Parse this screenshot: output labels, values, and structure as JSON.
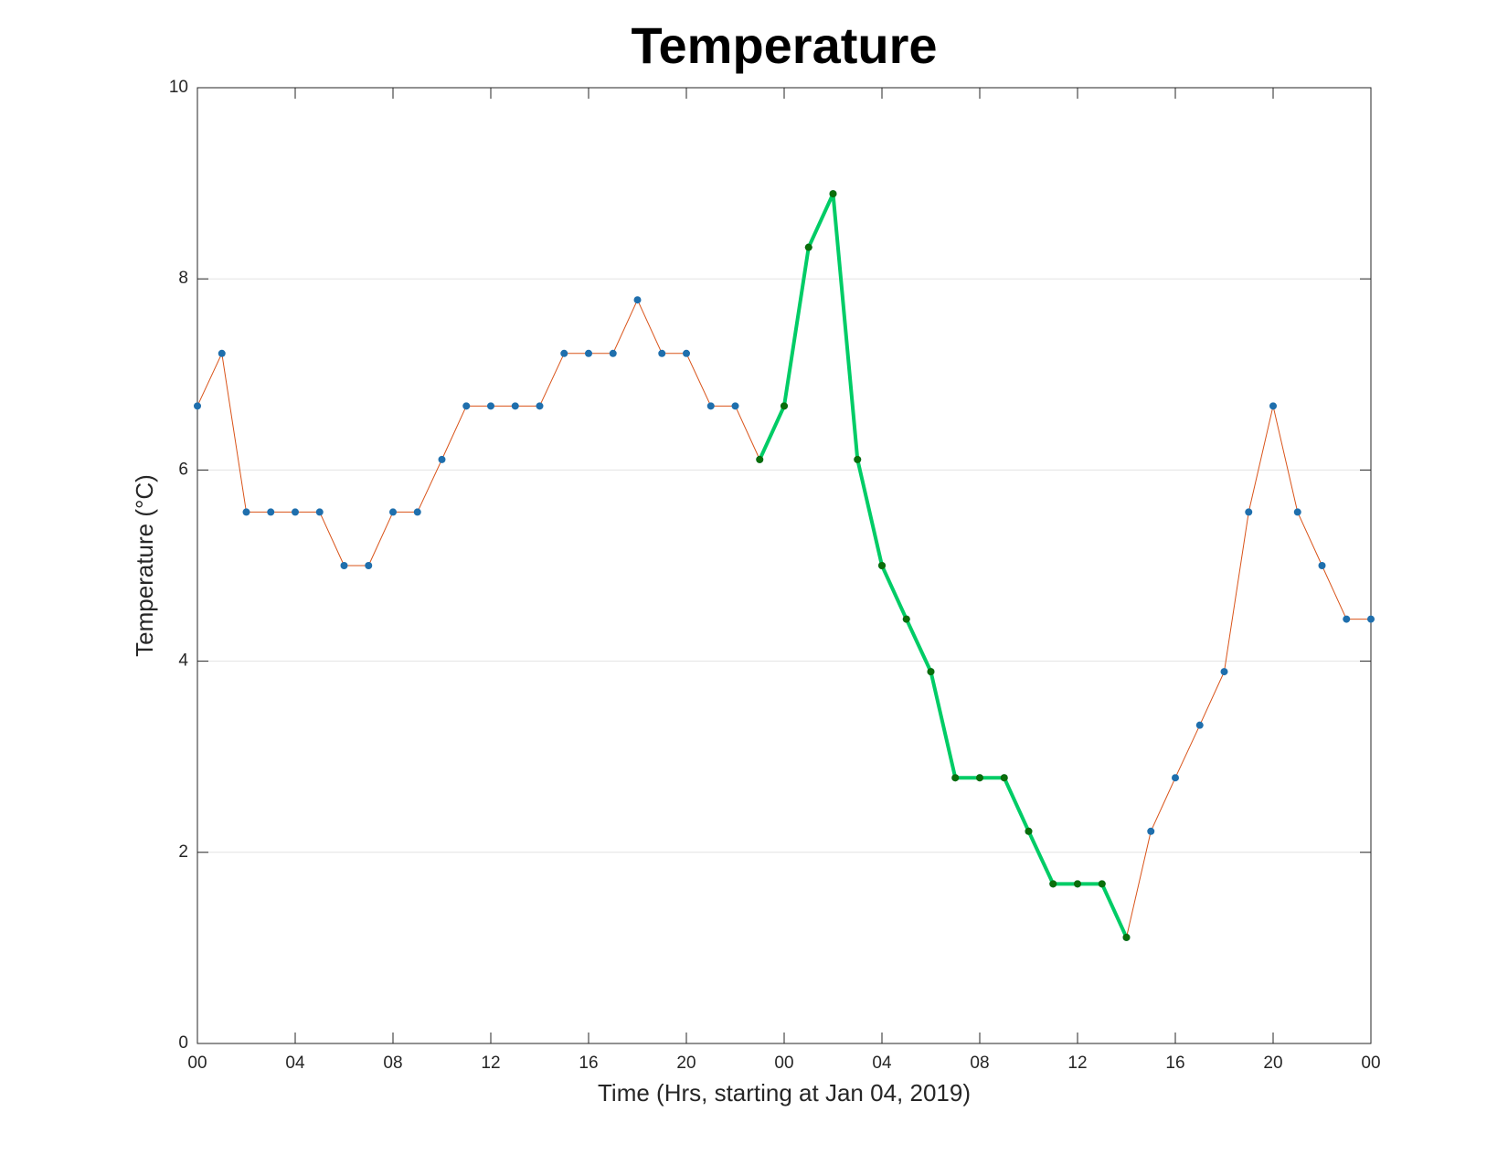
{
  "chart_data": {
    "type": "line",
    "title": "Temperature",
    "xlabel": "Time (Hrs, starting at Jan 04, 2019)",
    "ylabel": "Temperature (°C)",
    "x": [
      0,
      1,
      2,
      3,
      4,
      5,
      6,
      7,
      8,
      9,
      10,
      11,
      12,
      13,
      14,
      15,
      16,
      17,
      18,
      19,
      20,
      21,
      22,
      23,
      24,
      25,
      26,
      27,
      28,
      29,
      30,
      31,
      32,
      33,
      34,
      35,
      36,
      37,
      38,
      39,
      40,
      41,
      42,
      43,
      44,
      45,
      46,
      47,
      48
    ],
    "series": [
      {
        "color": "#d95319",
        "marker_color": "#1f6fad",
        "line_width": 1,
        "values": [
          6.67,
          7.22,
          5.56,
          5.56,
          5.56,
          5.56,
          5.0,
          5.0,
          5.56,
          5.56,
          6.11,
          6.67,
          6.67,
          6.67,
          6.67,
          7.22,
          7.22,
          7.22,
          7.78,
          7.22,
          7.22,
          6.67,
          6.67,
          6.11,
          6.67,
          8.33,
          8.89,
          6.11,
          5.0,
          4.44,
          3.89,
          2.78,
          2.78,
          2.78,
          2.22,
          1.67,
          1.67,
          1.67,
          1.11,
          2.22,
          2.78,
          3.33,
          3.89,
          5.56,
          6.67,
          5.56,
          5.0,
          4.44,
          4.44
        ]
      },
      {
        "color": "#00cc66",
        "marker_color": "#0a6e0a",
        "line_width": 4,
        "values": [
          null,
          null,
          null,
          null,
          null,
          null,
          null,
          null,
          null,
          null,
          null,
          null,
          null,
          null,
          null,
          null,
          null,
          null,
          null,
          null,
          null,
          null,
          null,
          6.11,
          6.67,
          8.33,
          8.89,
          6.11,
          5.0,
          4.44,
          3.89,
          2.78,
          2.78,
          2.78,
          2.22,
          1.67,
          1.67,
          1.67,
          1.11,
          null,
          null,
          null,
          null,
          null,
          null,
          null,
          null,
          null,
          null
        ]
      }
    ],
    "xlim": [
      0,
      48
    ],
    "xticks": [
      {
        "value": 0,
        "label": "00"
      },
      {
        "value": 4,
        "label": "04"
      },
      {
        "value": 8,
        "label": "08"
      },
      {
        "value": 12,
        "label": "12"
      },
      {
        "value": 16,
        "label": "16"
      },
      {
        "value": 20,
        "label": "20"
      },
      {
        "value": 24,
        "label": "00"
      },
      {
        "value": 28,
        "label": "04"
      },
      {
        "value": 32,
        "label": "08"
      },
      {
        "value": 36,
        "label": "12"
      },
      {
        "value": 40,
        "label": "16"
      },
      {
        "value": 44,
        "label": "20"
      },
      {
        "value": 48,
        "label": "00"
      }
    ],
    "ylim": [
      0,
      10
    ],
    "yticks": [
      0,
      2,
      4,
      6,
      8,
      10
    ],
    "grid": "y"
  }
}
